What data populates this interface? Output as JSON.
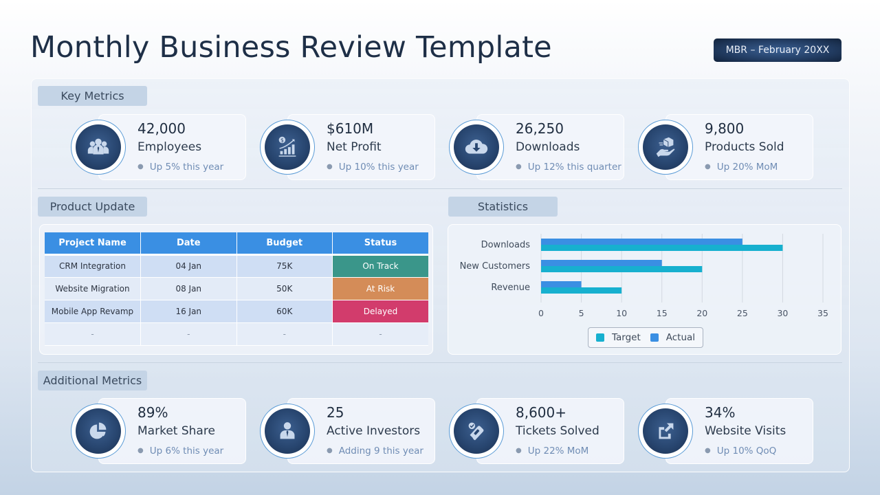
{
  "header": {
    "title": "Monthly Business Review Template",
    "badge": "MBR – February 20XX"
  },
  "sections": {
    "key_metrics": "Key Metrics",
    "product_update": "Product Update",
    "statistics": "Statistics",
    "additional_metrics": "Additional Metrics"
  },
  "key_metrics": [
    {
      "value": "42,000",
      "label": "Employees",
      "note": "Up 5% this year",
      "icon": "people-group-icon"
    },
    {
      "value": "$610M",
      "label": "Net Profit",
      "note": "Up 10% this year",
      "icon": "profit-growth-chart-icon"
    },
    {
      "value": "26,250",
      "label": "Downloads",
      "note": "Up 12% this quarter",
      "icon": "cloud-download-icon"
    },
    {
      "value": "9,800",
      "label": "Products Sold",
      "note": "Up 20% MoM",
      "icon": "hand-box-icon"
    }
  ],
  "additional_metrics": [
    {
      "value": "89%",
      "label": "Market Share",
      "note": "Up 6% this year",
      "icon": "pie-chart-icon"
    },
    {
      "value": "25",
      "label": "Active Investors",
      "note": "Adding 9 this year",
      "icon": "businessman-icon"
    },
    {
      "value": "8,600+",
      "label": "Tickets Solved",
      "note": "Up 22% MoM",
      "icon": "ticket-check-icon"
    },
    {
      "value": "34%",
      "label": "Website Visits",
      "note": "Up 10% QoQ",
      "icon": "external-link-icon"
    }
  ],
  "product_table": {
    "columns": [
      "Project Name",
      "Date",
      "Budget",
      "Status"
    ],
    "rows": [
      {
        "name": "CRM Integration",
        "date": "04 Jan",
        "budget": "75K",
        "status": "On Track",
        "status_color": "#3a968a"
      },
      {
        "name": "Website Migration",
        "date": "08 Jan",
        "budget": "50K",
        "status": "At Risk",
        "status_color": "#d48c58"
      },
      {
        "name": "Mobile App Revamp",
        "date": "16 Jan",
        "budget": "60K",
        "status": "Delayed",
        "status_color": "#d23c6c"
      },
      {
        "name": "-",
        "date": "-",
        "budget": "-",
        "status": "-",
        "status_color": ""
      }
    ]
  },
  "colors": {
    "header_blue": "#3a8fe3",
    "target": "#17b0cf",
    "actual": "#3a8fe3",
    "icon_disc": "#284670"
  },
  "chart_data": {
    "type": "bar",
    "orientation": "horizontal",
    "title": "Statistics",
    "categories": [
      "Downloads",
      "New Customers",
      "Revenue"
    ],
    "series": [
      {
        "name": "Target",
        "values": [
          30,
          20,
          10
        ],
        "color": "#17b0cf"
      },
      {
        "name": "Actual",
        "values": [
          25,
          15,
          5
        ],
        "color": "#3a8fe3"
      }
    ],
    "xticks": [
      0,
      5,
      10,
      15,
      20,
      25,
      30,
      35
    ],
    "xlim": [
      0,
      35
    ],
    "xlabel": "",
    "ylabel": "",
    "grid": "vertical",
    "legend_position": "bottom"
  }
}
